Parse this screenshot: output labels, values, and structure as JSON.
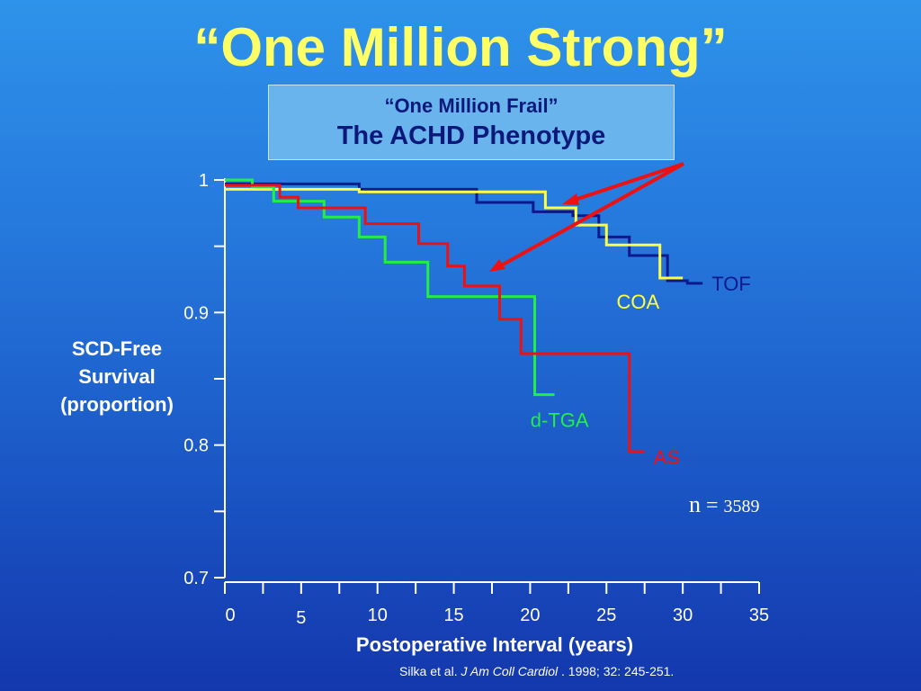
{
  "slide": {
    "title": "“One Million Strong”",
    "box_line1": "“One Million Frail”",
    "box_line2": "The ACHD Phenotype",
    "n_symbol": "n",
    "n_eq": " = ",
    "n_value": "3589",
    "citation_prefix": "Silka et al. ",
    "citation_journal": "J Am Coll Cardiol",
    "citation_suffix": " . 1998; 32: 245-251."
  },
  "chart_data": {
    "type": "line",
    "step": true,
    "title": "",
    "xlabel": "Postoperative Interval (years)",
    "ylabel_lines": [
      "SCD-Free",
      "Survival",
      "(proportion)"
    ],
    "xlim": [
      0,
      35
    ],
    "ylim": [
      0.7,
      1.0
    ],
    "x_ticks": [
      0,
      5,
      10,
      15,
      20,
      25,
      30,
      35
    ],
    "x_tick_labels": [
      "0",
      "5",
      "10",
      "15",
      "20",
      "25",
      "30",
      "35"
    ],
    "y_ticks": [
      0.7,
      0.75,
      0.8,
      0.85,
      0.9,
      0.95,
      1.0
    ],
    "y_tick_labels": [
      "0.7",
      "",
      "0.8",
      "",
      "0.9",
      "",
      "1"
    ],
    "series": [
      {
        "name": "TOF",
        "color": "#0a1a8c",
        "points": [
          [
            0,
            0.997
          ],
          [
            8.8,
            0.993
          ],
          [
            16.5,
            0.983
          ],
          [
            20.2,
            0.976
          ],
          [
            22.8,
            0.973
          ],
          [
            24.5,
            0.957
          ],
          [
            26.5,
            0.943
          ],
          [
            29,
            0.924
          ],
          [
            30.3,
            0.922
          ],
          [
            31.3,
            0.922
          ]
        ]
      },
      {
        "name": "COA",
        "color": "#ffff44",
        "points": [
          [
            0,
            0.993
          ],
          [
            8.8,
            0.991
          ],
          [
            21,
            0.979
          ],
          [
            23,
            0.966
          ],
          [
            25,
            0.951
          ],
          [
            28.5,
            0.926
          ],
          [
            30,
            0.926
          ]
        ]
      },
      {
        "name": "d-TGA",
        "color": "#22ee44",
        "points": [
          [
            0,
            1.0
          ],
          [
            1.8,
            0.995
          ],
          [
            3.2,
            0.984
          ],
          [
            6.5,
            0.972
          ],
          [
            8.8,
            0.957
          ],
          [
            10.5,
            0.938
          ],
          [
            13.3,
            0.912
          ],
          [
            20.3,
            0.838
          ],
          [
            21.6,
            0.838
          ]
        ]
      },
      {
        "name": "AS",
        "color": "#ee1111",
        "points": [
          [
            0,
            0.996
          ],
          [
            3.6,
            0.987
          ],
          [
            4.8,
            0.979
          ],
          [
            9.2,
            0.967
          ],
          [
            12.7,
            0.952
          ],
          [
            14.6,
            0.935
          ],
          [
            15.7,
            0.92
          ],
          [
            18,
            0.895
          ],
          [
            19.4,
            0.869
          ],
          [
            26.5,
            0.795
          ],
          [
            27.5,
            0.795
          ]
        ]
      }
    ]
  }
}
